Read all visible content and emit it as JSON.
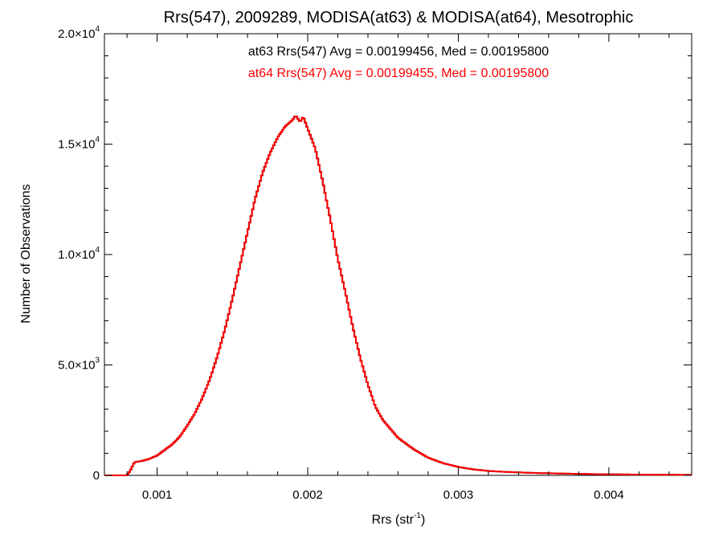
{
  "chart_data": {
    "type": "histogram-step",
    "title": "Rrs(547), 2009289, MODISA(at63) & MODISA(at64), Mesotrophic",
    "xlabel": "Rrs (str",
    "xlabel_sup": "-1",
    "xlabel_close": ")",
    "ylabel": "Number of Observations",
    "xlim": [
      0.00065,
      0.00455
    ],
    "ylim": [
      0,
      20000
    ],
    "grid": false,
    "x_ticks": [
      {
        "value": 0.001,
        "label": "0.001"
      },
      {
        "value": 0.002,
        "label": "0.002"
      },
      {
        "value": 0.003,
        "label": "0.003"
      },
      {
        "value": 0.004,
        "label": "0.004"
      }
    ],
    "y_ticks": [
      {
        "value": 0,
        "mant": "0",
        "exp": ""
      },
      {
        "value": 5000,
        "mant": "5.0×10",
        "exp": "3"
      },
      {
        "value": 10000,
        "mant": "1.0×10",
        "exp": "4"
      },
      {
        "value": 15000,
        "mant": "1.5×10",
        "exp": "4"
      },
      {
        "value": 20000,
        "mant": "2.0×10",
        "exp": "4"
      }
    ],
    "annotations": [
      {
        "text": "at63 Rrs(547) Avg = 0.00199456, Med = 0.00195800",
        "color": "#000000"
      },
      {
        "text": "at64 Rrs(547) Avg = 0.00199455, Med = 0.00195800",
        "color": "#ff0000"
      }
    ],
    "series": [
      {
        "name": "at63",
        "color": "#000000",
        "x": [
          0.00065,
          0.0008,
          0.00082,
          0.00085,
          0.0009,
          0.00095,
          0.001,
          0.00105,
          0.0011,
          0.00115,
          0.0012,
          0.00125,
          0.0013,
          0.00135,
          0.0014,
          0.00145,
          0.0015,
          0.00155,
          0.0016,
          0.00165,
          0.0017,
          0.00175,
          0.0018,
          0.00185,
          0.0019,
          0.00192,
          0.00195,
          0.00197,
          0.002,
          0.00205,
          0.0021,
          0.00215,
          0.0022,
          0.00225,
          0.0023,
          0.00235,
          0.0024,
          0.00245,
          0.0025,
          0.0026,
          0.0027,
          0.0028,
          0.0029,
          0.003,
          0.0031,
          0.0032,
          0.0033,
          0.0035,
          0.0037,
          0.0039,
          0.0041,
          0.0043,
          0.00455
        ],
        "y": [
          0,
          0,
          200,
          600,
          650,
          750,
          900,
          1150,
          1400,
          1750,
          2250,
          2800,
          3500,
          4350,
          5400,
          6600,
          8000,
          9500,
          11000,
          12500,
          13700,
          14600,
          15300,
          15800,
          16100,
          16300,
          16000,
          16250,
          15700,
          14800,
          13300,
          11600,
          9800,
          8300,
          6700,
          5300,
          4100,
          3100,
          2500,
          1700,
          1200,
          800,
          550,
          380,
          270,
          200,
          160,
          110,
          80,
          55,
          40,
          30,
          20
        ]
      },
      {
        "name": "at64",
        "color": "#ff0000",
        "x": [
          0.00065,
          0.0008,
          0.00082,
          0.00085,
          0.0009,
          0.00095,
          0.001,
          0.00105,
          0.0011,
          0.00115,
          0.0012,
          0.00125,
          0.0013,
          0.00135,
          0.0014,
          0.00145,
          0.0015,
          0.00155,
          0.0016,
          0.00165,
          0.0017,
          0.00175,
          0.0018,
          0.00185,
          0.0019,
          0.00192,
          0.00195,
          0.00197,
          0.002,
          0.00205,
          0.0021,
          0.00215,
          0.0022,
          0.00225,
          0.0023,
          0.00235,
          0.0024,
          0.00245,
          0.0025,
          0.0026,
          0.0027,
          0.0028,
          0.0029,
          0.003,
          0.0031,
          0.0032,
          0.0033,
          0.0035,
          0.0037,
          0.0039,
          0.0041,
          0.0043,
          0.00455
        ],
        "y": [
          0,
          0,
          200,
          600,
          650,
          750,
          900,
          1150,
          1400,
          1750,
          2250,
          2800,
          3500,
          4350,
          5400,
          6600,
          8000,
          9500,
          11000,
          12500,
          13700,
          14600,
          15300,
          15800,
          16100,
          16300,
          16000,
          16250,
          15700,
          14800,
          13300,
          11600,
          9800,
          8300,
          6700,
          5300,
          4100,
          3100,
          2500,
          1700,
          1200,
          800,
          550,
          380,
          270,
          200,
          160,
          110,
          80,
          55,
          40,
          30,
          20
        ]
      }
    ]
  }
}
